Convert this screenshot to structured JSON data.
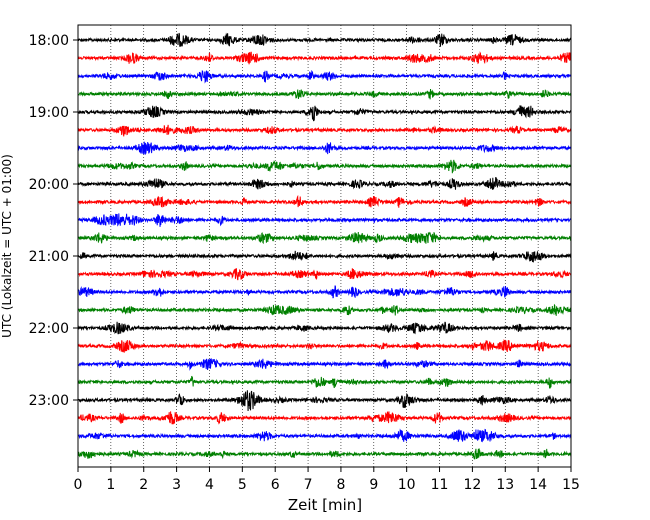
{
  "chart_data": {
    "type": "line",
    "title": "",
    "xlabel": "Zeit  [min]",
    "ylabel": "UTC (Lokalzeit = UTC + 01:00)",
    "xlim": [
      0,
      15
    ],
    "x_ticks": [
      0,
      1,
      2,
      3,
      4,
      5,
      6,
      7,
      8,
      9,
      10,
      11,
      12,
      13,
      14,
      15
    ],
    "y_tick_labels": [
      "18:00",
      "19:00",
      "20:00",
      "21:00",
      "22:00",
      "23:00"
    ],
    "row_start_times": [
      "18:00",
      "18:15",
      "18:30",
      "18:45",
      "19:00",
      "19:15",
      "19:30",
      "19:45",
      "20:00",
      "20:15",
      "20:30",
      "20:45",
      "21:00",
      "21:15",
      "21:30",
      "21:45",
      "22:00",
      "22:15",
      "22:30",
      "22:45",
      "23:00",
      "23:15",
      "23:30",
      "23:45"
    ],
    "row_colors": [
      "#000000",
      "#ff0000",
      "#0000ff",
      "#008000"
    ],
    "grid": "vertical-dotted",
    "legend": "none"
  }
}
